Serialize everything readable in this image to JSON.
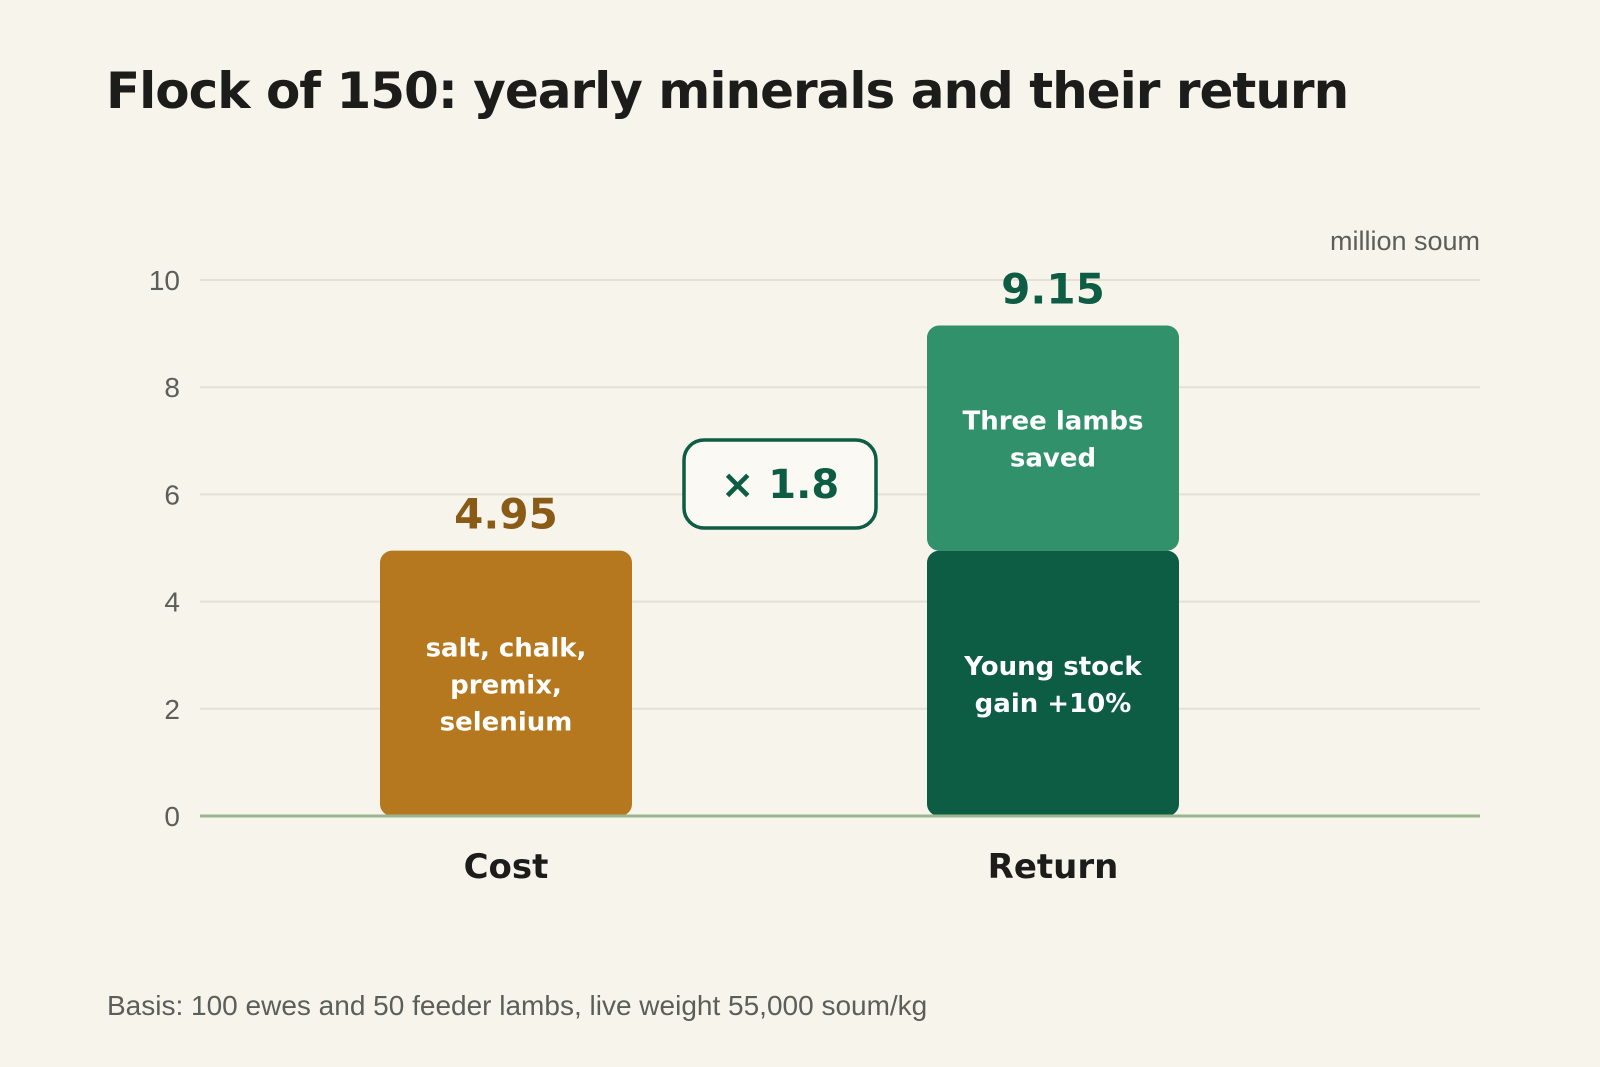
{
  "title": "Flock of 150: yearly minerals and their return",
  "footnote": "Basis: 100 ewes and 50 feeder lambs, live weight 55,000 soum/kg",
  "colors": {
    "background": "#f7f4ec",
    "cost": "#b5781f",
    "cost_label": "#8a5a17",
    "return_lower": "#0d5c44",
    "return_upper": "#31916b",
    "return_label": "#0d5c44",
    "baseline": "#9bb68f",
    "grid": "#e4e0d6",
    "tick_text": "#5b5e59"
  },
  "chart_data": {
    "type": "bar",
    "stacked": true,
    "unit_label": "million soum",
    "ylim": [
      0,
      10
    ],
    "yticks": [
      0,
      2,
      4,
      6,
      8,
      10
    ],
    "grid": true,
    "categories": [
      "Cost",
      "Return"
    ],
    "bars": [
      {
        "category": "Cost",
        "total_label": "4.95",
        "segments": [
          {
            "value": 4.95,
            "label": "salt, chalk,\npremix,\nselenium",
            "color": "#b5781f"
          }
        ]
      },
      {
        "category": "Return",
        "total_label": "9.15",
        "segments": [
          {
            "value": 4.95,
            "label": "Young stock\ngain +10%",
            "color": "#0d5c44"
          },
          {
            "value": 4.2,
            "label": "Three lambs\nsaved",
            "color": "#31916b"
          }
        ]
      }
    ],
    "ratio_label": "× 1.8"
  }
}
